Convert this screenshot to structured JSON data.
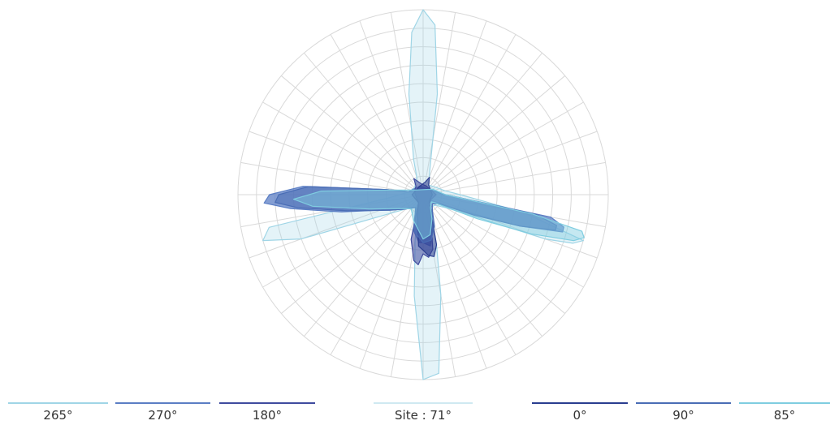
{
  "chart_data": {
    "type": "polar-area",
    "grid": {
      "rings": 10,
      "spokes": 36
    },
    "angle_unit": "deg",
    "angle_zero": "down",
    "series": [
      {
        "name": "265°",
        "color": "#9fd5e6",
        "opacity": 0.28,
        "points": [
          [
            0,
            1.0
          ],
          [
            5,
            0.97
          ],
          [
            10,
            0.55
          ],
          [
            15,
            0.28
          ],
          [
            20,
            0.14
          ],
          [
            25,
            0.09
          ],
          [
            30,
            0.08
          ],
          [
            40,
            0.08
          ],
          [
            50,
            0.09
          ],
          [
            60,
            0.14
          ],
          [
            65,
            0.22
          ],
          [
            70,
            0.7
          ],
          [
            72,
            0.85
          ],
          [
            74,
            0.9
          ],
          [
            80,
            0.55
          ],
          [
            90,
            0.2
          ],
          [
            100,
            0.12
          ],
          [
            120,
            0.08
          ],
          [
            150,
            0.06
          ],
          [
            165,
            0.14
          ],
          [
            172,
            0.55
          ],
          [
            176,
            0.92
          ],
          [
            180,
            1.0
          ],
          [
            184,
            0.88
          ],
          [
            188,
            0.55
          ],
          [
            195,
            0.2
          ],
          [
            200,
            0.1
          ],
          [
            230,
            0.06
          ],
          [
            260,
            0.08
          ],
          [
            275,
            0.18
          ],
          [
            282,
            0.85
          ],
          [
            286,
            0.9
          ],
          [
            290,
            0.7
          ],
          [
            300,
            0.2
          ],
          [
            310,
            0.12
          ],
          [
            320,
            0.09
          ],
          [
            340,
            0.08
          ],
          [
            350,
            0.25
          ],
          [
            355,
            0.55
          ],
          [
            360,
            1.0
          ]
        ]
      },
      {
        "name": "270°",
        "color": "#5b7ec4",
        "opacity": 0.75,
        "points": [
          [
            0,
            0.26
          ],
          [
            8,
            0.28
          ],
          [
            15,
            0.2
          ],
          [
            25,
            0.12
          ],
          [
            35,
            0.06
          ],
          [
            50,
            0.05
          ],
          [
            60,
            0.08
          ],
          [
            68,
            0.26
          ],
          [
            72,
            0.55
          ],
          [
            75,
            0.78
          ],
          [
            77,
            0.78
          ],
          [
            80,
            0.7
          ],
          [
            90,
            0.12
          ],
          [
            110,
            0.06
          ],
          [
            200,
            0.05
          ],
          [
            258,
            0.08
          ],
          [
            262,
            0.2
          ],
          [
            266,
            0.65
          ],
          [
            270,
            0.83
          ],
          [
            273,
            0.86
          ],
          [
            276,
            0.72
          ],
          [
            282,
            0.45
          ],
          [
            292,
            0.22
          ],
          [
            305,
            0.14
          ],
          [
            318,
            0.1
          ],
          [
            330,
            0.08
          ],
          [
            345,
            0.2
          ],
          [
            355,
            0.26
          ],
          [
            360,
            0.26
          ]
        ]
      },
      {
        "name": "180°",
        "color": "#3f4b9e",
        "opacity": 0.55,
        "points": [
          [
            0,
            0.32
          ],
          [
            5,
            0.34
          ],
          [
            10,
            0.3
          ],
          [
            20,
            0.12
          ],
          [
            35,
            0.06
          ],
          [
            60,
            0.05
          ],
          [
            90,
            0.07
          ],
          [
            160,
            0.05
          ],
          [
            190,
            0.06
          ],
          [
            210,
            0.1
          ],
          [
            220,
            0.06
          ],
          [
            250,
            0.05
          ],
          [
            300,
            0.04
          ],
          [
            330,
            0.05
          ],
          [
            345,
            0.25
          ],
          [
            352,
            0.36
          ],
          [
            356,
            0.38
          ],
          [
            360,
            0.32
          ]
        ]
      },
      {
        "name": "0°",
        "color": "#2a3d8f",
        "opacity": 0.55,
        "points": [
          [
            0,
            0.3
          ],
          [
            5,
            0.33
          ],
          [
            10,
            0.34
          ],
          [
            15,
            0.28
          ],
          [
            25,
            0.1
          ],
          [
            40,
            0.05
          ],
          [
            90,
            0.05
          ],
          [
            150,
            0.06
          ],
          [
            160,
            0.1
          ],
          [
            170,
            0.07
          ],
          [
            200,
            0.05
          ],
          [
            270,
            0.06
          ],
          [
            330,
            0.05
          ],
          [
            345,
            0.12
          ],
          [
            355,
            0.28
          ],
          [
            360,
            0.3
          ]
        ]
      },
      {
        "name": "90°",
        "color": "#4a6db5",
        "opacity": 0.55,
        "points": [
          [
            0,
            0.26
          ],
          [
            10,
            0.25
          ],
          [
            20,
            0.18
          ],
          [
            30,
            0.1
          ],
          [
            45,
            0.07
          ],
          [
            60,
            0.1
          ],
          [
            68,
            0.3
          ],
          [
            72,
            0.55
          ],
          [
            75,
            0.74
          ],
          [
            77,
            0.74
          ],
          [
            80,
            0.62
          ],
          [
            90,
            0.12
          ],
          [
            120,
            0.05
          ],
          [
            240,
            0.05
          ],
          [
            258,
            0.08
          ],
          [
            262,
            0.2
          ],
          [
            266,
            0.62
          ],
          [
            270,
            0.78
          ],
          [
            273,
            0.8
          ],
          [
            276,
            0.68
          ],
          [
            282,
            0.42
          ],
          [
            295,
            0.2
          ],
          [
            310,
            0.12
          ],
          [
            330,
            0.08
          ],
          [
            345,
            0.2
          ],
          [
            360,
            0.26
          ]
        ]
      },
      {
        "name": "85°",
        "color": "#7fcde0",
        "opacity": 0.45,
        "points": [
          [
            0,
            0.24
          ],
          [
            10,
            0.22
          ],
          [
            20,
            0.14
          ],
          [
            30,
            0.08
          ],
          [
            50,
            0.06
          ],
          [
            60,
            0.12
          ],
          [
            66,
            0.32
          ],
          [
            70,
            0.62
          ],
          [
            73,
            0.85
          ],
          [
            75,
            0.9
          ],
          [
            77,
            0.88
          ],
          [
            80,
            0.6
          ],
          [
            90,
            0.12
          ],
          [
            120,
            0.06
          ],
          [
            240,
            0.05
          ],
          [
            262,
            0.18
          ],
          [
            268,
            0.55
          ],
          [
            272,
            0.7
          ],
          [
            276,
            0.6
          ],
          [
            285,
            0.3
          ],
          [
            300,
            0.15
          ],
          [
            320,
            0.1
          ],
          [
            340,
            0.15
          ],
          [
            360,
            0.24
          ]
        ]
      }
    ]
  },
  "legend": [
    {
      "label": "265°",
      "color": "#9fd5e6"
    },
    {
      "label": "270°",
      "color": "#5b7ec4"
    },
    {
      "label": "180°",
      "color": "#3f4b9e"
    },
    {
      "label": "Site : 71°",
      "color": "#cfe9f1"
    },
    {
      "label": "0°",
      "color": "#2a3d8f"
    },
    {
      "label": "90°",
      "color": "#4a6db5"
    },
    {
      "label": "85°",
      "color": "#7fcde0"
    }
  ]
}
